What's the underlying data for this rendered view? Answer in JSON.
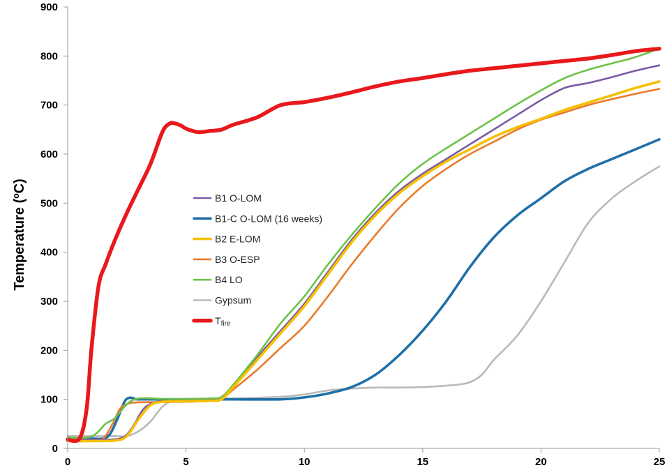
{
  "chart_data": {
    "type": "line",
    "title": "",
    "xlabel": "",
    "ylabel": "Temperature (ºC)",
    "xlim": [
      0,
      25
    ],
    "ylim": [
      0,
      900
    ],
    "xticks": [
      0,
      5,
      10,
      15,
      20,
      25
    ],
    "yticks": [
      0,
      100,
      200,
      300,
      400,
      500,
      600,
      700,
      800,
      900
    ],
    "grid": false,
    "legend_position": "center-left",
    "series": [
      {
        "name": "B1 O-LOM",
        "label_main": "B1 O-LOM",
        "label_sub": "",
        "color": "#7b5aa6",
        "width": "normal",
        "x": [
          0,
          1,
          1.8,
          2.2,
          2.5,
          2.8,
          3.2,
          3.6,
          4,
          5,
          6,
          6.5,
          7,
          8,
          9,
          10,
          11,
          12,
          13,
          14,
          15,
          16,
          17,
          18,
          19,
          20,
          21,
          22,
          23,
          24,
          25
        ],
        "y": [
          18,
          18,
          18,
          20,
          28,
          48,
          80,
          93,
          96,
          98,
          99,
          102,
          125,
          185,
          240,
          295,
          360,
          425,
          480,
          525,
          560,
          590,
          620,
          650,
          680,
          710,
          735,
          745,
          757,
          770,
          781
        ]
      },
      {
        "name": "B1-C O-LOM (16 weeks)",
        "label_main": "B1-C O-LOM (16 weeks)",
        "label_sub": "",
        "color": "#1f6fa8",
        "width": "thick",
        "x": [
          0,
          1,
          1.5,
          1.8,
          2.1,
          2.4,
          2.6,
          2.8,
          3,
          5,
          7,
          9,
          10,
          11,
          12,
          13,
          14,
          15,
          16,
          17,
          18,
          19,
          20,
          21,
          22,
          23,
          24,
          25
        ],
        "y": [
          20,
          20,
          20,
          30,
          60,
          95,
          103,
          102,
          100,
          100,
          100,
          100,
          104,
          112,
          125,
          150,
          190,
          240,
          300,
          370,
          430,
          475,
          510,
          545,
          570,
          590,
          610,
          630
        ]
      },
      {
        "name": "B2 E-LOM",
        "label_main": "B2 E-LOM",
        "label_sub": "",
        "color": "#f5c000",
        "width": "thick",
        "x": [
          0,
          1,
          2,
          2.5,
          3,
          3.5,
          4,
          5,
          6,
          6.5,
          7,
          8,
          9,
          10,
          11,
          12,
          13,
          14,
          15,
          16,
          17,
          18,
          19,
          20,
          21,
          22,
          23,
          24,
          25
        ],
        "y": [
          15,
          15,
          16,
          25,
          60,
          88,
          95,
          96,
          97,
          100,
          125,
          180,
          235,
          290,
          355,
          420,
          475,
          520,
          555,
          585,
          610,
          635,
          655,
          672,
          690,
          705,
          720,
          735,
          748
        ]
      },
      {
        "name": "B3 O-ESP",
        "label_main": "B3 O-ESP",
        "label_sub": "",
        "color": "#ea7a2a",
        "width": "normal",
        "x": [
          0,
          1,
          1.5,
          1.9,
          2.2,
          2.5,
          3,
          5,
          6,
          6.5,
          7,
          8,
          9,
          10,
          11,
          12,
          13,
          14,
          15,
          16,
          17,
          18,
          19,
          20,
          21,
          22,
          23,
          24,
          25
        ],
        "y": [
          15,
          15,
          20,
          50,
          80,
          90,
          94,
          95,
          97,
          101,
          120,
          160,
          205,
          250,
          310,
          375,
          435,
          490,
          535,
          570,
          600,
          625,
          650,
          670,
          685,
          700,
          712,
          723,
          733
        ]
      },
      {
        "name": "B4 LO",
        "label_main": "B4 LO",
        "label_sub": "",
        "color": "#6cc24a",
        "width": "normal",
        "x": [
          0,
          0.8,
          1.2,
          1.6,
          2,
          2.5,
          3,
          4,
          5,
          6,
          6.5,
          7,
          8,
          9,
          10,
          11,
          12,
          13,
          14,
          15,
          16,
          17,
          18,
          19,
          20,
          21,
          22,
          23,
          24,
          25
        ],
        "y": [
          22,
          22,
          30,
          50,
          62,
          90,
          102,
          101,
          101,
          102,
          105,
          130,
          190,
          255,
          310,
          375,
          435,
          490,
          540,
          580,
          612,
          642,
          672,
          702,
          730,
          755,
          772,
          785,
          798,
          815
        ]
      },
      {
        "name": "Gypsum",
        "label_main": "Gypsum",
        "label_sub": "",
        "color": "#b9b9b9",
        "width": "normal",
        "x": [
          0,
          1,
          2,
          2.5,
          3,
          3.5,
          4,
          4.5,
          5,
          7,
          9,
          10,
          11,
          12,
          13,
          14,
          15,
          16,
          16.5,
          17,
          17.5,
          18,
          19,
          20,
          21,
          22,
          23,
          24,
          25
        ],
        "y": [
          25,
          25,
          25,
          25,
          35,
          55,
          85,
          98,
          100,
          102,
          105,
          110,
          118,
          122,
          124,
          124,
          125,
          128,
          130,
          135,
          150,
          180,
          230,
          300,
          380,
          460,
          510,
          545,
          575
        ]
      },
      {
        "name": "Tfire",
        "label_main": "T",
        "label_sub": "fire",
        "color": "#e8191c",
        "width": "heavy",
        "x": [
          0,
          0.5,
          0.8,
          1,
          1.3,
          1.6,
          2,
          2.5,
          3,
          3.5,
          4,
          4.3,
          4.5,
          4.8,
          5,
          5.5,
          6,
          6.5,
          7,
          8,
          9,
          10,
          11,
          12,
          13,
          14,
          15,
          16,
          17,
          18,
          19,
          20,
          21,
          22,
          23,
          24,
          25
        ],
        "y": [
          18,
          20,
          80,
          200,
          330,
          375,
          425,
          480,
          530,
          580,
          645,
          662,
          663,
          658,
          652,
          645,
          647,
          650,
          660,
          675,
          700,
          706,
          715,
          726,
          738,
          748,
          755,
          763,
          770,
          775,
          780,
          785,
          790,
          795,
          802,
          810,
          815
        ]
      }
    ]
  }
}
